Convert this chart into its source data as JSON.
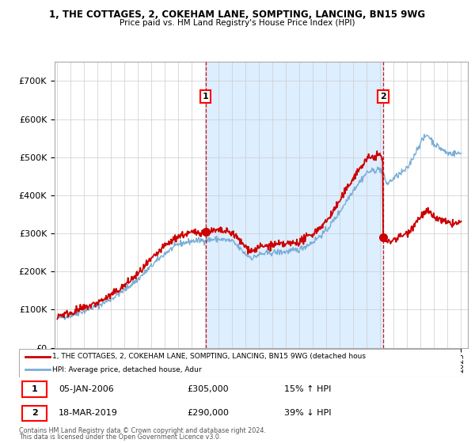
{
  "title1": "1, THE COTTAGES, 2, COKEHAM LANE, SOMPTING, LANCING, BN15 9WG",
  "title2": "Price paid vs. HM Land Registry's House Price Index (HPI)",
  "legend_label1": "1, THE COTTAGES, 2, COKEHAM LANE, SOMPTING, LANCING, BN15 9WG (detached hous",
  "legend_label2": "HPI: Average price, detached house, Adur",
  "ann1_date": "05-JAN-2006",
  "ann1_price": "£305,000",
  "ann1_hpi": "15% ↑ HPI",
  "ann1_x": 2006.01,
  "ann1_y": 305000,
  "ann2_date": "18-MAR-2019",
  "ann2_price": "£290,000",
  "ann2_hpi": "39% ↓ HPI",
  "ann2_x": 2019.21,
  "ann2_y": 290000,
  "footer1": "Contains HM Land Registry data © Crown copyright and database right 2024.",
  "footer2": "This data is licensed under the Open Government Licence v3.0.",
  "property_color": "#cc0000",
  "hpi_color": "#7aaed6",
  "shade_color": "#ddeeff",
  "ylim": [
    0,
    750000
  ],
  "yticks": [
    0,
    100000,
    200000,
    300000,
    400000,
    500000,
    600000,
    700000
  ],
  "ytick_labels": [
    "£0",
    "£100K",
    "£200K",
    "£300K",
    "£400K",
    "£500K",
    "£600K",
    "£700K"
  ],
  "xmin": 1994.8,
  "xmax": 2025.5
}
